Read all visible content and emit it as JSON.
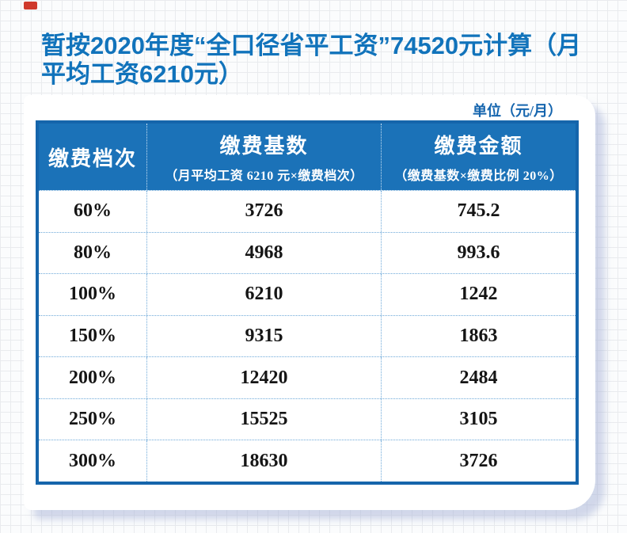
{
  "header": {
    "title": "暂按2020年度“全口径省平工资”74520元计算（月平均工资6210元）",
    "unit_note": "单位（元/月）"
  },
  "table": {
    "columns": [
      {
        "label": "缴费档次",
        "sublabel": ""
      },
      {
        "label": "缴费基数",
        "sublabel": "（月平均工资 6210 元×缴费档次）"
      },
      {
        "label": "缴费金额",
        "sublabel": "（缴费基数×缴费比例 20%）"
      }
    ],
    "rows": [
      [
        "60%",
        "3726",
        "745.2"
      ],
      [
        "80%",
        "4968",
        "993.6"
      ],
      [
        "100%",
        "6210",
        "1242"
      ],
      [
        "150%",
        "9315",
        "1863"
      ],
      [
        "200%",
        "12420",
        "2484"
      ],
      [
        "250%",
        "15525",
        "3105"
      ],
      [
        "300%",
        "18630",
        "3726"
      ]
    ]
  },
  "colors": {
    "title_blue": "#1173bb",
    "header_bg": "#1b72b8",
    "table_border": "#1565ab",
    "divider_dotted": "#6ea9d9",
    "unit_note_blue": "#1565ae",
    "body_text": "#151515",
    "shadow": "rgba(168,180,216,0.5)",
    "red_tape": "#cf392c"
  }
}
